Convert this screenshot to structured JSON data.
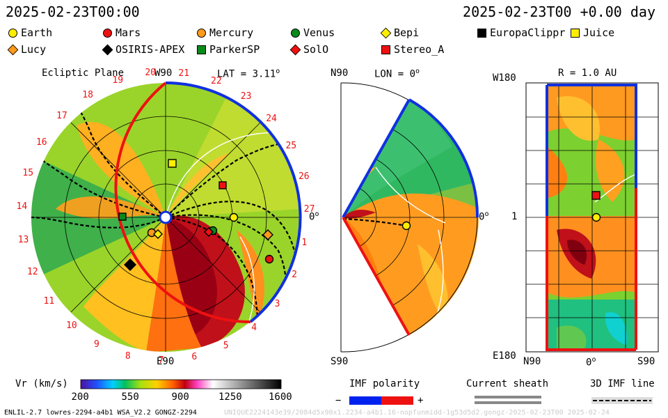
{
  "header": {
    "date_left": "2025-02-23T00:00",
    "date_right": "2025-02-23T00 +0.00 day"
  },
  "legend": [
    {
      "label": "Earth",
      "shape": "circle",
      "color": "#ffee00"
    },
    {
      "label": "Mars",
      "shape": "circle",
      "color": "#e11"
    },
    {
      "label": "Mercury",
      "shape": "circle",
      "color": "#ff9a1a"
    },
    {
      "label": "Venus",
      "shape": "circle",
      "color": "#0a8a1a"
    },
    {
      "label": "Bepi",
      "shape": "diamond",
      "color": "#ffee00"
    },
    {
      "label": "EuropaClippr",
      "shape": "square",
      "color": "#000000"
    },
    {
      "label": "Juice",
      "shape": "square",
      "color": "#ffee00"
    },
    {
      "label": "Lucy",
      "shape": "diamond",
      "color": "#ff9a1a"
    },
    {
      "label": "OSIRIS-APEX",
      "shape": "diamond",
      "color": "#000000"
    },
    {
      "label": "ParkerSP",
      "shape": "square",
      "color": "#0a8a1a"
    },
    {
      "label": "SolO",
      "shape": "diamond",
      "color": "#e11"
    },
    {
      "label": "Stereo_A",
      "shape": "square",
      "color": "#e11"
    }
  ],
  "ecliptic": {
    "title": "Ecliptic Plane",
    "top_label": "W90",
    "lat_label": "LAT = 3.11",
    "deg_symbol": "o",
    "zero_label": "0",
    "bottom_label": "E90",
    "ticks": [
      "20",
      "21",
      "22",
      "23",
      "24",
      "25",
      "26",
      "27",
      "1",
      "2",
      "3",
      "4",
      "5",
      "6",
      "7",
      "8",
      "9",
      "10",
      "11",
      "12",
      "13",
      "14",
      "15",
      "16",
      "17",
      "18",
      "19"
    ]
  },
  "meridional": {
    "top_label": "N90",
    "lon_label": "LON = 0",
    "zero_label": "0",
    "bottom_label": "S90"
  },
  "radial": {
    "r_label": "R = 1.0 AU",
    "top_left": "W180",
    "mid_left": "1",
    "bottom_left": "E180",
    "x_labels": [
      "N90",
      "0",
      "S90"
    ]
  },
  "colorbar": {
    "title": "Vr (km/s)",
    "ticks": [
      "200",
      "550",
      "900",
      "1250",
      "1600"
    ]
  },
  "imf": {
    "title": "IMF polarity",
    "minus": "−",
    "plus": "+",
    "sheath_title": "Current sheath",
    "line_title": "3D IMF line"
  },
  "footer": {
    "left": "ENLIL-2.7 lowres-2294-a4b1 WSA_V2.2 GONGZ-2294",
    "right": "UNIQUE2224143e39/2084d5x90x1.2234-a4b1.16-nopfunmidd-1g53d5d2.gongz-2025-02-23T00   2025-02-24"
  },
  "colors": {
    "polarity_negative": "#0022ee",
    "polarity_positive": "#ee1111"
  }
}
